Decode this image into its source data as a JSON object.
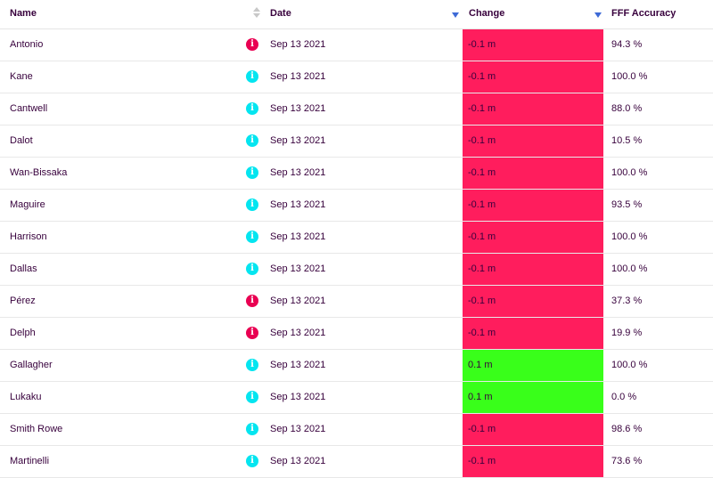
{
  "colors": {
    "negative": "#ff1d5d",
    "positive": "#39ff1a",
    "info_red": "#e90052",
    "info_cyan": "#04e5f0",
    "text": "#37003c",
    "sort_arrow": "#3d6ad6"
  },
  "header": {
    "name": "Name",
    "date": "Date",
    "change": "Change",
    "accuracy": "FFF Accuracy"
  },
  "rows": [
    {
      "name": "Antonio",
      "info_icon": "i",
      "info_color": "red",
      "date": "Sep 13 2021",
      "change": "-0.1 m",
      "change_sign": "negative",
      "accuracy": "94.3 %"
    },
    {
      "name": "Kane",
      "info_icon": "i",
      "info_color": "cyan",
      "date": "Sep 13 2021",
      "change": "-0.1 m",
      "change_sign": "negative",
      "accuracy": "100.0 %"
    },
    {
      "name": "Cantwell",
      "info_icon": "i",
      "info_color": "cyan",
      "date": "Sep 13 2021",
      "change": "-0.1 m",
      "change_sign": "negative",
      "accuracy": "88.0 %"
    },
    {
      "name": "Dalot",
      "info_icon": "i",
      "info_color": "cyan",
      "date": "Sep 13 2021",
      "change": "-0.1 m",
      "change_sign": "negative",
      "accuracy": "10.5 %"
    },
    {
      "name": "Wan-Bissaka",
      "info_icon": "i",
      "info_color": "cyan",
      "date": "Sep 13 2021",
      "change": "-0.1 m",
      "change_sign": "negative",
      "accuracy": "100.0 %"
    },
    {
      "name": "Maguire",
      "info_icon": "i",
      "info_color": "cyan",
      "date": "Sep 13 2021",
      "change": "-0.1 m",
      "change_sign": "negative",
      "accuracy": "93.5 %"
    },
    {
      "name": "Harrison",
      "info_icon": "i",
      "info_color": "cyan",
      "date": "Sep 13 2021",
      "change": "-0.1 m",
      "change_sign": "negative",
      "accuracy": "100.0 %"
    },
    {
      "name": "Dallas",
      "info_icon": "i",
      "info_color": "cyan",
      "date": "Sep 13 2021",
      "change": "-0.1 m",
      "change_sign": "negative",
      "accuracy": "100.0 %"
    },
    {
      "name": "Pérez",
      "info_icon": "i",
      "info_color": "red",
      "date": "Sep 13 2021",
      "change": "-0.1 m",
      "change_sign": "negative",
      "accuracy": "37.3 %"
    },
    {
      "name": "Delph",
      "info_icon": "i",
      "info_color": "red",
      "date": "Sep 13 2021",
      "change": "-0.1 m",
      "change_sign": "negative",
      "accuracy": "19.9 %"
    },
    {
      "name": "Gallagher",
      "info_icon": "i",
      "info_color": "cyan",
      "date": "Sep 13 2021",
      "change": "0.1 m",
      "change_sign": "positive",
      "accuracy": "100.0 %"
    },
    {
      "name": "Lukaku",
      "info_icon": "i",
      "info_color": "cyan",
      "date": "Sep 13 2021",
      "change": "0.1 m",
      "change_sign": "positive",
      "accuracy": "0.0 %"
    },
    {
      "name": "Smith Rowe",
      "info_icon": "i",
      "info_color": "cyan",
      "date": "Sep 13 2021",
      "change": "-0.1 m",
      "change_sign": "negative",
      "accuracy": "98.6 %"
    },
    {
      "name": "Martinelli",
      "info_icon": "i",
      "info_color": "cyan",
      "date": "Sep 13 2021",
      "change": "-0.1 m",
      "change_sign": "negative",
      "accuracy": "73.6 %"
    }
  ]
}
